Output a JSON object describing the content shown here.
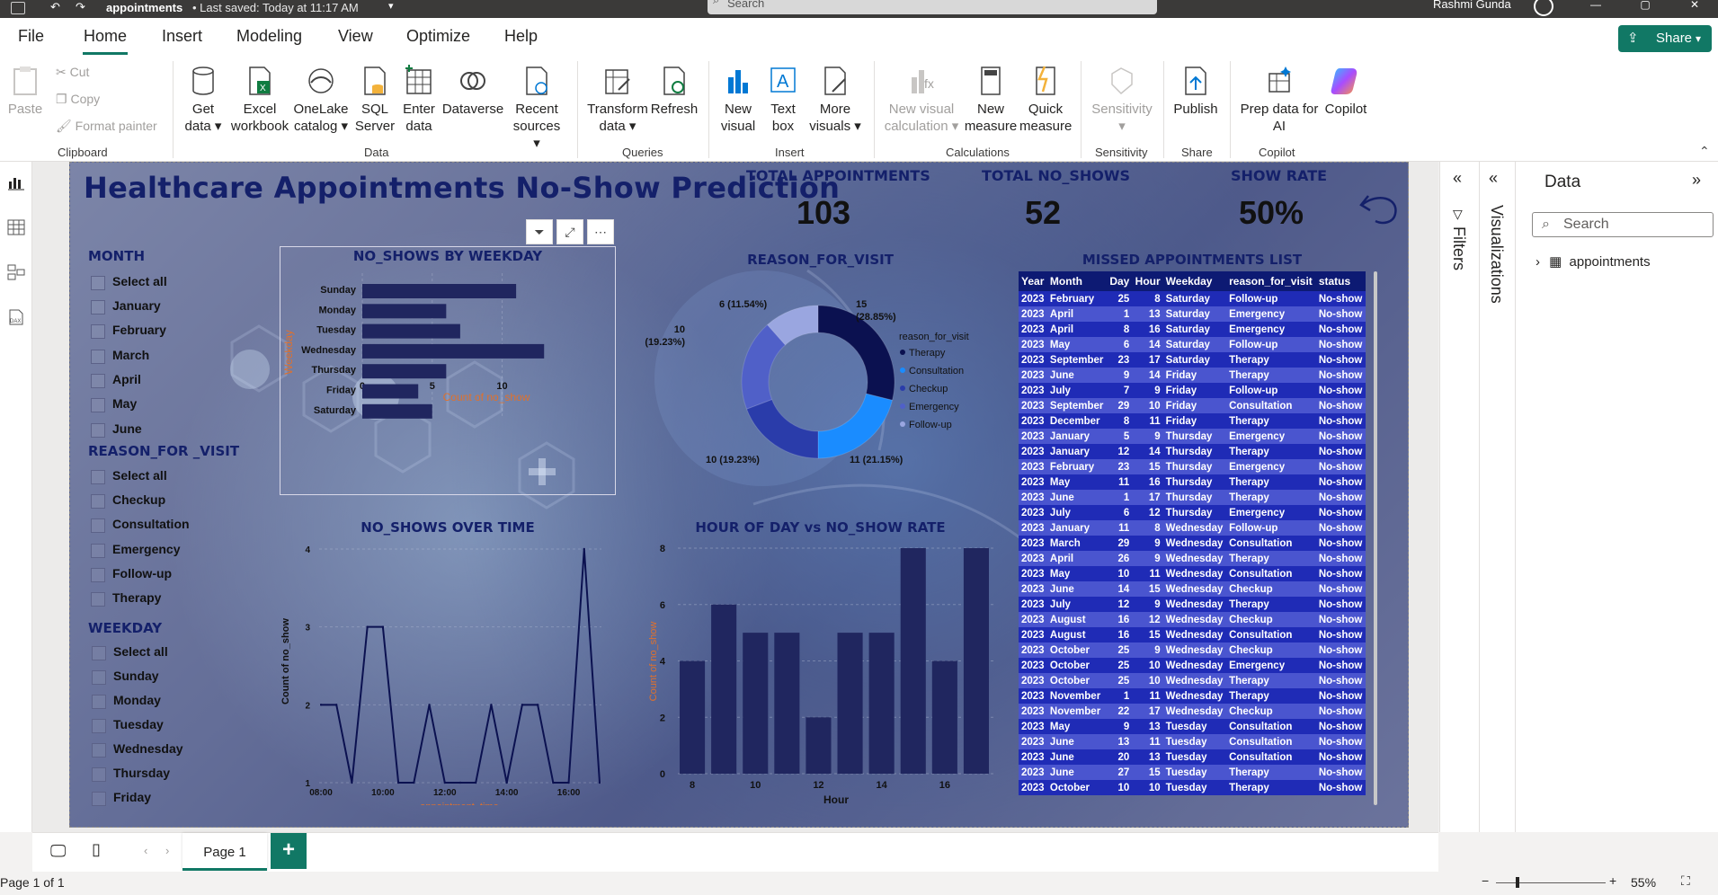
{
  "titlebar": {
    "doc_title": "appointments",
    "status": "• Last saved: Today at 11:17 AM",
    "search_placeholder": "Search",
    "user": "Rashmi Gunda"
  },
  "menu": {
    "items": [
      "File",
      "Home",
      "Insert",
      "Modeling",
      "View",
      "Optimize",
      "Help"
    ],
    "share": "Share"
  },
  "ribbon": {
    "clipboard": {
      "paste": "Paste",
      "cut": "Cut",
      "copy": "Copy",
      "format_painter": "Format painter",
      "group": "Clipboard"
    },
    "data": {
      "get_data": [
        "Get",
        "data"
      ],
      "excel": [
        "Excel",
        "workbook"
      ],
      "onelake": [
        "OneLake",
        "catalog"
      ],
      "sql": [
        "SQL",
        "Server"
      ],
      "enter": [
        "Enter",
        "data"
      ],
      "dataverse": "Dataverse",
      "recent": [
        "Recent",
        "sources"
      ],
      "group": "Data"
    },
    "queries": {
      "transform": [
        "Transform",
        "data"
      ],
      "refresh": "Refresh",
      "group": "Queries"
    },
    "insert": {
      "new_visual": [
        "New",
        "visual"
      ],
      "text_box": [
        "Text",
        "box"
      ],
      "more_visuals": [
        "More",
        "visuals"
      ],
      "group": "Insert"
    },
    "calculations": {
      "new_visual_calc": [
        "New visual",
        "calculation"
      ],
      "new_measure": [
        "New",
        "measure"
      ],
      "quick_measure": [
        "Quick",
        "measure"
      ],
      "group": "Calculations"
    },
    "sensitivity": {
      "label": "Sensitivity",
      "group": "Sensitivity"
    },
    "share": {
      "publish": "Publish",
      "group": "Share"
    },
    "copilot": {
      "prep": [
        "Prep data for",
        "AI"
      ],
      "copilot": "Copilot",
      "group": "Copilot"
    }
  },
  "report": {
    "title": "Healthcare Appointments No-Show Prediction",
    "kpis": [
      {
        "label": "TOTAL APPOINTMENTS",
        "value": "103"
      },
      {
        "label": "TOTAL NO_SHOWS",
        "value": "52"
      },
      {
        "label": "SHOW RATE",
        "value": "50%"
      }
    ],
    "slicers": {
      "month": {
        "title": "MONTH",
        "items": [
          "Select all",
          "January",
          "February",
          "March",
          "April",
          "May",
          "June"
        ]
      },
      "reason": {
        "title": "REASON_FOR _VISIT",
        "items": [
          "Select all",
          "Checkup",
          "Consultation",
          "Emergency",
          "Follow-up",
          "Therapy"
        ]
      },
      "weekday": {
        "title": "WEEKDAY",
        "items": [
          "Select all",
          "Sunday",
          "Monday",
          "Tuesday",
          "Wednesday",
          "Thursday",
          "Friday"
        ]
      }
    },
    "table": {
      "title": "MISSED APPOINTMENTS LIST",
      "columns": [
        "Year",
        "Month",
        "Day",
        "Hour",
        "Weekday",
        "reason_for_visit",
        "status"
      ],
      "rows": [
        [
          "2023",
          "February",
          "25",
          "8",
          "Saturday",
          "Follow-up",
          "No-show"
        ],
        [
          "2023",
          "April",
          "1",
          "13",
          "Saturday",
          "Emergency",
          "No-show"
        ],
        [
          "2023",
          "April",
          "8",
          "16",
          "Saturday",
          "Emergency",
          "No-show"
        ],
        [
          "2023",
          "May",
          "6",
          "14",
          "Saturday",
          "Follow-up",
          "No-show"
        ],
        [
          "2023",
          "September",
          "23",
          "17",
          "Saturday",
          "Therapy",
          "No-show"
        ],
        [
          "2023",
          "June",
          "9",
          "14",
          "Friday",
          "Therapy",
          "No-show"
        ],
        [
          "2023",
          "July",
          "7",
          "9",
          "Friday",
          "Follow-up",
          "No-show"
        ],
        [
          "2023",
          "September",
          "29",
          "10",
          "Friday",
          "Consultation",
          "No-show"
        ],
        [
          "2023",
          "December",
          "8",
          "11",
          "Friday",
          "Therapy",
          "No-show"
        ],
        [
          "2023",
          "January",
          "5",
          "9",
          "Thursday",
          "Emergency",
          "No-show"
        ],
        [
          "2023",
          "January",
          "12",
          "14",
          "Thursday",
          "Therapy",
          "No-show"
        ],
        [
          "2023",
          "February",
          "23",
          "15",
          "Thursday",
          "Emergency",
          "No-show"
        ],
        [
          "2023",
          "May",
          "11",
          "16",
          "Thursday",
          "Therapy",
          "No-show"
        ],
        [
          "2023",
          "June",
          "1",
          "17",
          "Thursday",
          "Therapy",
          "No-show"
        ],
        [
          "2023",
          "July",
          "6",
          "12",
          "Thursday",
          "Emergency",
          "No-show"
        ],
        [
          "2023",
          "January",
          "11",
          "8",
          "Wednesday",
          "Follow-up",
          "No-show"
        ],
        [
          "2023",
          "March",
          "29",
          "9",
          "Wednesday",
          "Consultation",
          "No-show"
        ],
        [
          "2023",
          "April",
          "26",
          "9",
          "Wednesday",
          "Therapy",
          "No-show"
        ],
        [
          "2023",
          "May",
          "10",
          "11",
          "Wednesday",
          "Consultation",
          "No-show"
        ],
        [
          "2023",
          "June",
          "14",
          "15",
          "Wednesday",
          "Checkup",
          "No-show"
        ],
        [
          "2023",
          "July",
          "12",
          "9",
          "Wednesday",
          "Therapy",
          "No-show"
        ],
        [
          "2023",
          "August",
          "16",
          "12",
          "Wednesday",
          "Checkup",
          "No-show"
        ],
        [
          "2023",
          "August",
          "16",
          "15",
          "Wednesday",
          "Consultation",
          "No-show"
        ],
        [
          "2023",
          "October",
          "25",
          "9",
          "Wednesday",
          "Checkup",
          "No-show"
        ],
        [
          "2023",
          "October",
          "25",
          "10",
          "Wednesday",
          "Emergency",
          "No-show"
        ],
        [
          "2023",
          "October",
          "25",
          "10",
          "Wednesday",
          "Therapy",
          "No-show"
        ],
        [
          "2023",
          "November",
          "1",
          "11",
          "Wednesday",
          "Therapy",
          "No-show"
        ],
        [
          "2023",
          "November",
          "22",
          "17",
          "Wednesday",
          "Checkup",
          "No-show"
        ],
        [
          "2023",
          "May",
          "9",
          "13",
          "Tuesday",
          "Consultation",
          "No-show"
        ],
        [
          "2023",
          "June",
          "13",
          "11",
          "Tuesday",
          "Consultation",
          "No-show"
        ],
        [
          "2023",
          "June",
          "20",
          "13",
          "Tuesday",
          "Consultation",
          "No-show"
        ],
        [
          "2023",
          "June",
          "27",
          "15",
          "Tuesday",
          "Therapy",
          "No-show"
        ],
        [
          "2023",
          "October",
          "10",
          "10",
          "Tuesday",
          "Therapy",
          "No-show"
        ]
      ]
    }
  },
  "chart_data": [
    {
      "type": "bar",
      "orientation": "horizontal",
      "title": "NO_SHOWS BY WEEKDAY",
      "xlabel": "Count of no_show",
      "ylabel": "Weekday",
      "categories": [
        "Sunday",
        "Monday",
        "Tuesday",
        "Wednesday",
        "Thursday",
        "Friday",
        "Saturday"
      ],
      "values": [
        11,
        6,
        7,
        13,
        6,
        4,
        5
      ],
      "xticks": [
        "0",
        "5",
        "10"
      ],
      "xlim": [
        0,
        13.5
      ],
      "color": "#20265f"
    },
    {
      "type": "pie",
      "donut": true,
      "title": "REASON_FOR_VISIT",
      "legend_title": "reason_for_visit",
      "legend_position": "right",
      "categories": [
        "Therapy",
        "Consultation",
        "Checkup",
        "Emergency",
        "Follow-up"
      ],
      "values": [
        15,
        11,
        10,
        10,
        6
      ],
      "labels": [
        "15\n(28.85%)",
        "11 (21.15%)",
        "10 (19.23%)",
        "10\n(19.23%)",
        "6 (11.54%)"
      ],
      "colors": [
        "#0b1150",
        "#1a8cff",
        "#2a3caa",
        "#5060c8",
        "#9aa6e0"
      ]
    },
    {
      "type": "line",
      "title": "NO_SHOWS OVER TIME",
      "xlabel": "appointment_time",
      "ylabel": "Count of no_show",
      "xticks": [
        "08:00",
        "10:00",
        "12:00",
        "14:00",
        "16:00"
      ],
      "yticks": [
        "1",
        "2",
        "3",
        "4"
      ],
      "ylim": [
        1,
        4
      ],
      "x": [
        "08:00",
        "08:30",
        "09:00",
        "09:30",
        "10:00",
        "10:30",
        "11:00",
        "11:30",
        "12:00",
        "12:30",
        "13:00",
        "13:30",
        "14:00",
        "14:30",
        "15:00",
        "15:30",
        "16:00",
        "16:30",
        "17:00"
      ],
      "values": [
        2,
        2,
        1,
        3,
        3,
        1,
        1,
        2,
        1,
        1,
        1,
        2,
        1,
        2,
        2,
        1,
        1,
        4,
        1
      ],
      "color": "#0b1150"
    },
    {
      "type": "bar",
      "title": "HOUR OF DAY vs NO_SHOW RATE",
      "xlabel": "Hour",
      "ylabel": "Count of no_show",
      "categories": [
        "8",
        "9",
        "10",
        "11",
        "12",
        "13",
        "14",
        "15",
        "16",
        "17"
      ],
      "values": [
        4,
        6,
        5,
        5,
        2,
        5,
        5,
        8,
        4,
        8
      ],
      "xticks": [
        "8",
        "10",
        "12",
        "14",
        "16"
      ],
      "yticks": [
        "0",
        "2",
        "4",
        "6",
        "8"
      ],
      "ylim": [
        0,
        8
      ],
      "color": "#20265f"
    }
  ],
  "pages": {
    "tab": "Page 1",
    "add": "+"
  },
  "panes": {
    "filters": "Filters",
    "visualizations": "Visualizations",
    "data_title": "Data",
    "search_placeholder": "Search",
    "table_name": "appointments"
  },
  "status": {
    "page": "Page 1 of 1",
    "zoom": "55%"
  }
}
